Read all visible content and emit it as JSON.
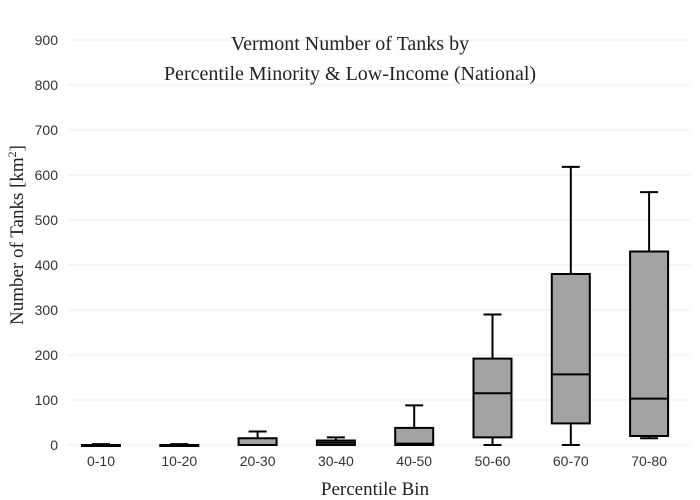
{
  "chart_data": {
    "type": "box",
    "title_line1": "Vermont Number of Tanks by",
    "title_line2": "Percentile Minority & Low-Income (National)",
    "xlabel": "Percentile Bin",
    "ylabel_main": "Number of Tanks  [km",
    "ylabel_sup": "2",
    "ylabel_end": "]",
    "ylim": [
      0,
      900
    ],
    "yticks": [
      0,
      100,
      200,
      300,
      400,
      500,
      600,
      700,
      800,
      900
    ],
    "grid": true,
    "categories": [
      "0-10",
      "10-20",
      "20-30",
      "30-40",
      "40-50",
      "50-60",
      "60-70",
      "70-80"
    ],
    "boxes": [
      {
        "min": 0,
        "q1": 0,
        "median": 0,
        "q3": 0,
        "max": 2
      },
      {
        "min": 0,
        "q1": 0,
        "median": 0,
        "q3": 0,
        "max": 2
      },
      {
        "min": 0,
        "q1": 0,
        "median": 0,
        "q3": 15,
        "max": 30
      },
      {
        "min": 0,
        "q1": 0,
        "median": 5,
        "q3": 10,
        "max": 17
      },
      {
        "min": 0,
        "q1": 0,
        "median": 3,
        "q3": 38,
        "max": 88
      },
      {
        "min": 0,
        "q1": 17,
        "median": 115,
        "q3": 192,
        "max": 290
      },
      {
        "min": 0,
        "q1": 48,
        "median": 157,
        "q3": 380,
        "max": 618
      },
      {
        "min": 15,
        "q1": 20,
        "median": 103,
        "q3": 430,
        "max": 562
      }
    ],
    "colors": {
      "box_fill": "#a3a3a3",
      "stroke": "#000000",
      "grid": "#ebebeb"
    }
  }
}
